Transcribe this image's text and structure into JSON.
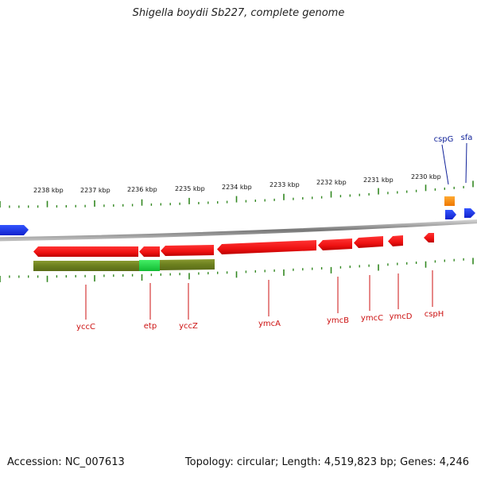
{
  "title": "Shigella boydii Sb227, complete genome",
  "footer": {
    "accession": "Accession: NC_007613",
    "info": "Topology: circular; Length: 4,519,823 bp; Genes: 4,246"
  },
  "ruler": {
    "labels": [
      "2238 kbp",
      "2237 kbp",
      "2236 kbp",
      "2235 kbp",
      "2234 kbp",
      "2233 kbp",
      "2232 kbp",
      "2231 kbp",
      "2230 kbp"
    ]
  },
  "colors": {
    "reverse_gene": "#ee1111",
    "forward_gene": "#1133ee",
    "highlight_gene": "#ff8800",
    "feature_olive": "#6b7f1e",
    "feature_bright": "#22cc44",
    "backbone": "#888888",
    "tick": "#338822",
    "label_red": "#cc1111",
    "label_blue": "#112299"
  },
  "genes_top": [
    {
      "name": "cspG",
      "color_key": "highlight_gene"
    },
    {
      "name": "sfa",
      "color_key": "forward_gene"
    }
  ],
  "genes_bottom": [
    {
      "name": "yccC"
    },
    {
      "name": "etp"
    },
    {
      "name": "yccZ"
    },
    {
      "name": "ymcA"
    },
    {
      "name": "ymcB"
    },
    {
      "name": "ymcC"
    },
    {
      "name": "ymcD"
    },
    {
      "name": "cspH"
    }
  ]
}
